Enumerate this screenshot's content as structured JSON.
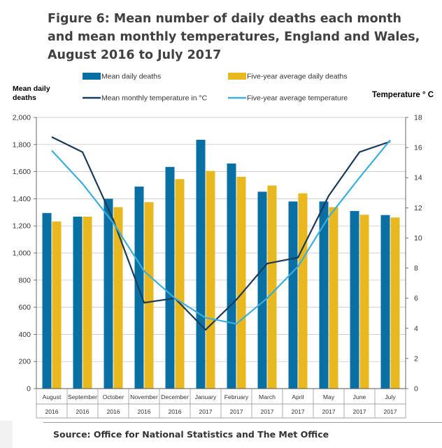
{
  "title": "Figure 6: Mean number of daily deaths each month and mean monthly temperatures, England and Wales, August 2016 to July 2017",
  "source": "Source: Office for National Statistics and The Met Office",
  "colors": {
    "deaths": "#0a70a4",
    "avg_deaths": "#e8b81e",
    "temp": "#1b3b5c",
    "avg_temp": "#3aaedc",
    "grid": "#bfbfbf"
  },
  "chart_data": {
    "type": "bar",
    "title": "Figure 6: Mean number of daily deaths each month and mean monthly temperatures, England and Wales, August 2016 to July 2017",
    "categories": [
      "August",
      "September",
      "October",
      "November",
      "December",
      "January",
      "February",
      "March",
      "April",
      "May",
      "June",
      "July"
    ],
    "years": [
      "2016",
      "2016",
      "2016",
      "2016",
      "2016",
      "2017",
      "2017",
      "2017",
      "2017",
      "2017",
      "2017",
      "2017"
    ],
    "ylabel": "Mean daily deaths",
    "y2label": "Temperature ° C",
    "ylim": [
      0,
      2000
    ],
    "yticks": [
      "0",
      "200",
      "400",
      "600",
      "800",
      "1,000",
      "1,200",
      "1,400",
      "1,600",
      "1,800",
      "2,000"
    ],
    "y2lim": [
      0,
      18
    ],
    "y2ticks": [
      "0",
      "2",
      "4",
      "6",
      "8",
      "10",
      "12",
      "14",
      "16",
      "18"
    ],
    "grid": true,
    "legend_position": "top",
    "series": [
      {
        "name": "Mean daily deaths",
        "type": "bar",
        "axis": "left",
        "values": [
          1295,
          1268,
          1400,
          1490,
          1635,
          1835,
          1660,
          1452,
          1380,
          1380,
          1310,
          1280
        ]
      },
      {
        "name": "Five-year average daily deaths",
        "type": "bar",
        "axis": "left",
        "values": [
          1232,
          1268,
          1338,
          1375,
          1545,
          1605,
          1562,
          1498,
          1440,
          1338,
          1282,
          1262
        ]
      },
      {
        "name": "Mean monthly temperature in °C",
        "type": "line",
        "axis": "right",
        "values": [
          16.7,
          15.7,
          11.2,
          5.7,
          6.0,
          3.9,
          5.9,
          8.3,
          8.7,
          12.8,
          15.7,
          16.4
        ]
      },
      {
        "name": "Five-year average temperature",
        "type": "line",
        "axis": "right",
        "values": [
          15.8,
          13.6,
          11.0,
          7.8,
          6.0,
          4.7,
          4.3,
          6.0,
          8.1,
          11.4,
          14.0,
          16.5
        ]
      }
    ]
  }
}
